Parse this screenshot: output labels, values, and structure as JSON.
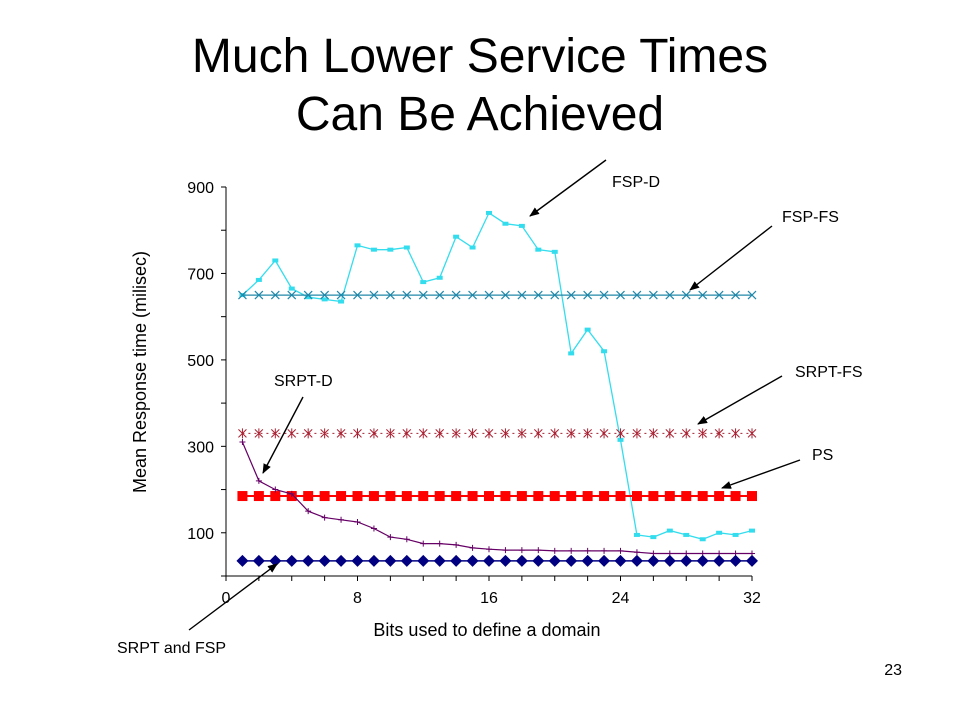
{
  "slide": {
    "title_line1": "Much Lower Service Times",
    "title_line2": "Can Be Achieved",
    "page_number": "23"
  },
  "colors": {
    "fsp_d": "#33ddee",
    "fsp_fs": "#2288aa",
    "srpt_fs": "#aa2233",
    "ps": "#ff0000",
    "srpt_d": "#660066",
    "srpt_fsp": "#000080"
  },
  "chart_data": {
    "type": "line",
    "xlabel": "Bits used to define a domain",
    "ylabel": "Mean Response time (milisec)",
    "xlim": [
      0,
      32
    ],
    "ylim": [
      0,
      900
    ],
    "x_ticks": [
      0,
      8,
      16,
      24,
      32
    ],
    "y_ticks": [
      100,
      300,
      500,
      700,
      900
    ],
    "grid": false,
    "x": [
      1,
      2,
      3,
      4,
      5,
      6,
      7,
      8,
      9,
      10,
      11,
      12,
      13,
      14,
      15,
      16,
      17,
      18,
      19,
      20,
      21,
      22,
      23,
      24,
      25,
      26,
      27,
      28,
      29,
      30,
      31,
      32
    ],
    "series": [
      {
        "name": "FSP-D",
        "values": [
          650,
          685,
          730,
          665,
          645,
          640,
          635,
          765,
          755,
          755,
          760,
          680,
          690,
          785,
          760,
          840,
          815,
          810,
          755,
          750,
          515,
          570,
          520,
          315,
          95,
          90,
          105,
          95,
          85,
          100,
          95,
          105
        ]
      },
      {
        "name": "FSP-FS",
        "values": [
          650,
          650,
          650,
          650,
          650,
          650,
          650,
          650,
          650,
          650,
          650,
          650,
          650,
          650,
          650,
          650,
          650,
          650,
          650,
          650,
          650,
          650,
          650,
          650,
          650,
          650,
          650,
          650,
          650,
          650,
          650,
          650
        ]
      },
      {
        "name": "SRPT-FS",
        "values": [
          330,
          330,
          330,
          330,
          330,
          330,
          330,
          330,
          330,
          330,
          330,
          330,
          330,
          330,
          330,
          330,
          330,
          330,
          330,
          330,
          330,
          330,
          330,
          330,
          330,
          330,
          330,
          330,
          330,
          330,
          330,
          330
        ]
      },
      {
        "name": "PS",
        "values": [
          185,
          185,
          185,
          185,
          185,
          185,
          185,
          185,
          185,
          185,
          185,
          185,
          185,
          185,
          185,
          185,
          185,
          185,
          185,
          185,
          185,
          185,
          185,
          185,
          185,
          185,
          185,
          185,
          185,
          185,
          185,
          185
        ]
      },
      {
        "name": "SRPT-D",
        "values": [
          310,
          220,
          200,
          190,
          150,
          135,
          130,
          125,
          110,
          90,
          85,
          75,
          75,
          72,
          65,
          62,
          60,
          60,
          60,
          58,
          58,
          58,
          58,
          58,
          55,
          52,
          52,
          52,
          52,
          52,
          52,
          52
        ]
      },
      {
        "name": "SRPT and FSP",
        "values": [
          35,
          35,
          35,
          35,
          35,
          35,
          35,
          35,
          35,
          35,
          35,
          35,
          35,
          35,
          35,
          35,
          35,
          35,
          35,
          35,
          35,
          35,
          35,
          35,
          35,
          35,
          35,
          35,
          35,
          35,
          35,
          35
        ]
      }
    ],
    "annotations": [
      "FSP-D",
      "FSP-FS",
      "SRPT-FS",
      "PS",
      "SRPT-D",
      "SRPT and FSP"
    ]
  }
}
